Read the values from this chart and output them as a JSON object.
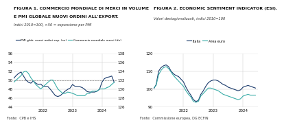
{
  "fig1_title_line1": "FIGURA 1. COMMERCIO MONDIALE DI MERCI IN VOLUME",
  "fig1_title_line2": "E PMI GLOBALE NUOVI ORDINI ALL'EXPORT.",
  "fig1_subtitle": "Indici 2010=100, >50 = espansione per PMI",
  "fig1_source": "Fonte:  CPB e IHS",
  "fig2_title_line1": "FIGURA 2. ECONOMIC SENTIMENT INDICATOR (ESI).",
  "fig2_subtitle": "Valori destagionalizzati, indici 2010=100",
  "fig2_source": "Fonte:  Commissione europea, DG ECFIN",
  "color_blue": "#1A3A6B",
  "color_teal": "#3AADA8",
  "background": "#FFFFFF",
  "grid_color": "#CCCCCC",
  "fig1_yleft_min": 44,
  "fig1_yleft_max": 56,
  "fig1_yright_min": 126,
  "fig1_yright_max": 138,
  "fig2_yleft_min": 90,
  "fig2_yleft_max": 120,
  "pmi_x": [
    2021.0,
    2021.083,
    2021.167,
    2021.25,
    2021.333,
    2021.417,
    2021.5,
    2021.583,
    2021.667,
    2021.75,
    2021.833,
    2021.917,
    2022.0,
    2022.083,
    2022.167,
    2022.25,
    2022.333,
    2022.417,
    2022.5,
    2022.583,
    2022.667,
    2022.75,
    2022.833,
    2022.917,
    2023.0,
    2023.083,
    2023.167,
    2023.25,
    2023.333,
    2023.417,
    2023.5,
    2023.583,
    2023.667,
    2023.75,
    2023.833,
    2023.917,
    2024.0,
    2024.083,
    2024.167,
    2024.25,
    2024.333,
    2024.417
  ],
  "pmi_y": [
    50.4,
    51.0,
    51.5,
    51.8,
    50.9,
    50.0,
    49.5,
    49.3,
    49.8,
    49.3,
    49.0,
    49.1,
    48.6,
    48.5,
    48.5,
    47.9,
    47.2,
    46.5,
    46.3,
    46.5,
    47.0,
    47.5,
    47.9,
    48.2,
    49.0,
    48.6,
    48.5,
    48.5,
    48.3,
    47.9,
    47.4,
    47.3,
    47.3,
    47.3,
    47.5,
    47.9,
    49.5,
    50.3,
    50.6,
    50.7,
    50.9,
    49.5
  ],
  "trade_y": [
    131.5,
    132.0,
    132.5,
    133.0,
    133.8,
    134.0,
    133.5,
    132.5,
    131.8,
    131.0,
    130.5,
    130.0,
    130.5,
    131.0,
    131.5,
    132.0,
    132.0,
    131.0,
    130.0,
    129.5,
    129.0,
    129.0,
    129.3,
    129.2,
    129.0,
    128.8,
    128.5,
    128.5,
    128.5,
    128.5,
    129.0,
    129.0,
    129.5,
    129.5,
    129.5,
    130.0,
    130.0,
    130.0,
    130.3,
    130.5,
    131.0,
    131.5
  ],
  "esi_x": [
    2021.0,
    2021.083,
    2021.167,
    2021.25,
    2021.333,
    2021.417,
    2021.5,
    2021.583,
    2021.667,
    2021.75,
    2021.833,
    2021.917,
    2022.0,
    2022.083,
    2022.167,
    2022.25,
    2022.333,
    2022.417,
    2022.5,
    2022.583,
    2022.667,
    2022.75,
    2022.833,
    2022.917,
    2023.0,
    2023.083,
    2023.167,
    2023.25,
    2023.333,
    2023.417,
    2023.5,
    2023.583,
    2023.667,
    2023.75,
    2023.833,
    2023.917,
    2024.0,
    2024.083,
    2024.167,
    2024.25,
    2024.333,
    2024.417
  ],
  "esi_italy": [
    100.0,
    102.5,
    110.0,
    112.0,
    113.0,
    113.5,
    112.5,
    110.0,
    108.5,
    107.5,
    107.0,
    105.5,
    104.0,
    101.0,
    98.5,
    96.5,
    94.0,
    93.0,
    93.5,
    97.0,
    99.0,
    101.5,
    103.5,
    104.5,
    105.0,
    105.0,
    104.5,
    103.5,
    102.5,
    102.0,
    101.0,
    100.5,
    100.0,
    99.5,
    99.0,
    99.5,
    101.0,
    101.5,
    102.0,
    101.5,
    101.0,
    100.5
  ],
  "esi_euro": [
    100.5,
    102.0,
    108.0,
    110.5,
    112.0,
    112.5,
    111.5,
    109.5,
    107.5,
    106.0,
    104.5,
    103.0,
    101.5,
    99.0,
    97.0,
    95.5,
    93.0,
    92.5,
    93.0,
    96.0,
    97.5,
    99.0,
    100.5,
    100.5,
    100.0,
    99.5,
    99.0,
    98.0,
    97.0,
    96.5,
    96.0,
    95.5,
    95.0,
    94.5,
    94.0,
    94.5,
    96.0,
    96.5,
    97.0,
    96.5,
    96.5,
    96.5
  ]
}
